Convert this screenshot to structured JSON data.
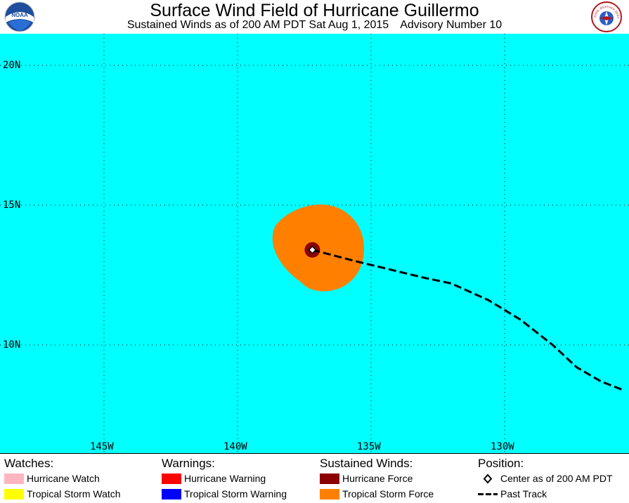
{
  "header": {
    "title": "Surface Wind Field of Hurricane Guillermo",
    "subtitle_left": "Sustained Winds as of 200 AM PDT Sat Aug 1, 2015",
    "subtitle_right": "Advisory Number 10",
    "left_logo_text": "NOAA",
    "right_logo_text": "NATIONAL WEATHER SERVICE",
    "left_logo_icon": "noaa-logo",
    "right_logo_icon": "nws-logo"
  },
  "map": {
    "ocean_color": "#00ffff",
    "lat_labels": [
      "20N",
      "15N",
      "10N"
    ],
    "lon_labels": [
      "145W",
      "140W",
      "135W",
      "130W"
    ],
    "lat_values": [
      20,
      15,
      10
    ],
    "lon_values": [
      -145,
      -140,
      -135,
      -130
    ],
    "tropical_storm_color": "#ff8000",
    "hurricane_color": "#8b0000",
    "center": {
      "lat": 13.4,
      "lon": -137.2
    },
    "past_track": [
      {
        "lat": 13.4,
        "lon": -137.2
      },
      {
        "lat": 13.0,
        "lon": -135.6
      },
      {
        "lat": 12.7,
        "lon": -134.3
      },
      {
        "lat": 12.4,
        "lon": -133.0
      },
      {
        "lat": 12.2,
        "lon": -132.0
      },
      {
        "lat": 11.6,
        "lon": -130.6
      },
      {
        "lat": 10.9,
        "lon": -129.4
      },
      {
        "lat": 10.0,
        "lon": -128.2
      },
      {
        "lat": 9.2,
        "lon": -127.3
      },
      {
        "lat": 8.7,
        "lon": -126.4
      },
      {
        "lat": 8.4,
        "lon": -125.6
      }
    ]
  },
  "legend": {
    "watches": {
      "heading": "Watches:",
      "items": [
        {
          "label": "Hurricane Watch",
          "color": "#ffb6c1"
        },
        {
          "label": "Tropical Storm Watch",
          "color": "#ffff00"
        }
      ]
    },
    "warnings": {
      "heading": "Warnings:",
      "items": [
        {
          "label": "Hurricane Warning",
          "color": "#ff0000"
        },
        {
          "label": "Tropical Storm Warning",
          "color": "#0000ff"
        }
      ]
    },
    "winds": {
      "heading": "Sustained Winds:",
      "items": [
        {
          "label": "Hurricane Force",
          "color": "#8b0000"
        },
        {
          "label": "Tropical Storm Force",
          "color": "#ff8000"
        }
      ]
    },
    "position": {
      "heading": "Position:",
      "items": [
        {
          "label": "Center as of 200 AM PDT",
          "icon": "diamond-icon"
        },
        {
          "label": "Past Track",
          "icon": "dashed-line-icon"
        }
      ]
    }
  }
}
